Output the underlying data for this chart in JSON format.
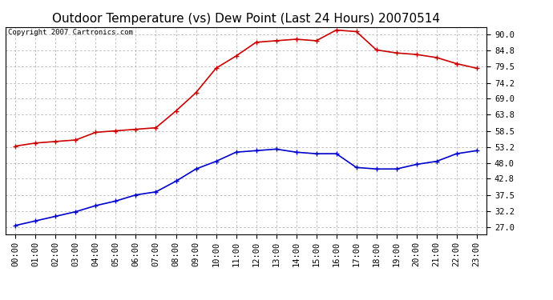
{
  "title": "Outdoor Temperature (vs) Dew Point (Last 24 Hours) 20070514",
  "copyright_text": "Copyright 2007 Cartronics.com",
  "hours": [
    "00:00",
    "01:00",
    "02:00",
    "03:00",
    "04:00",
    "05:00",
    "06:00",
    "07:00",
    "08:00",
    "09:00",
    "10:00",
    "11:00",
    "12:00",
    "13:00",
    "14:00",
    "15:00",
    "16:00",
    "17:00",
    "18:00",
    "19:00",
    "20:00",
    "21:00",
    "22:00",
    "23:00"
  ],
  "temp_red": [
    53.5,
    54.5,
    55.0,
    55.5,
    58.0,
    58.5,
    59.0,
    59.5,
    65.0,
    71.0,
    79.0,
    83.0,
    87.5,
    88.0,
    88.5,
    88.0,
    91.5,
    91.0,
    85.0,
    84.0,
    83.5,
    82.5,
    80.5,
    79.0
  ],
  "dew_blue": [
    27.5,
    29.0,
    30.5,
    32.0,
    34.0,
    35.5,
    37.5,
    38.5,
    42.0,
    46.0,
    48.5,
    51.5,
    52.0,
    52.5,
    51.5,
    51.0,
    51.0,
    46.5,
    46.0,
    46.0,
    47.5,
    48.5,
    51.0,
    52.0
  ],
  "y_ticks": [
    27.0,
    32.2,
    37.5,
    42.8,
    48.0,
    53.2,
    58.5,
    63.8,
    69.0,
    74.2,
    79.5,
    84.8,
    90.0
  ],
  "ylim": [
    24.7,
    92.5
  ],
  "bg_color": "#ffffff",
  "grid_color": "#aaaaaa",
  "red_color": "#cc0000",
  "blue_color": "#0000cc",
  "title_fontsize": 11,
  "copyright_fontsize": 6.5,
  "tick_fontsize": 7.5,
  "line_width": 1.2,
  "marker_size": 4
}
